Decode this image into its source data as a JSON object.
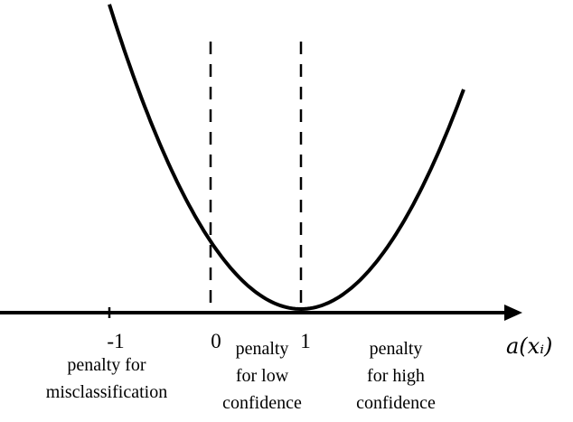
{
  "axis": {
    "x_label": "a(xᵢ)"
  },
  "ticks": [
    {
      "value": -1,
      "label": "-1"
    },
    {
      "value": 0,
      "label": "0"
    },
    {
      "value": 1,
      "label": "1"
    }
  ],
  "regions": {
    "misclassification": [
      "penalty for",
      "misclassification"
    ],
    "low_confidence": [
      "penalty",
      "for low",
      "confidence"
    ],
    "high_confidence": [
      "penalty",
      "for high",
      "confidence"
    ]
  },
  "curve": {
    "function": "(1 - a)^2",
    "x_range": [
      -1.12,
      2.8
    ]
  },
  "colors": {
    "stroke": "#000000",
    "background": "#ffffff"
  }
}
